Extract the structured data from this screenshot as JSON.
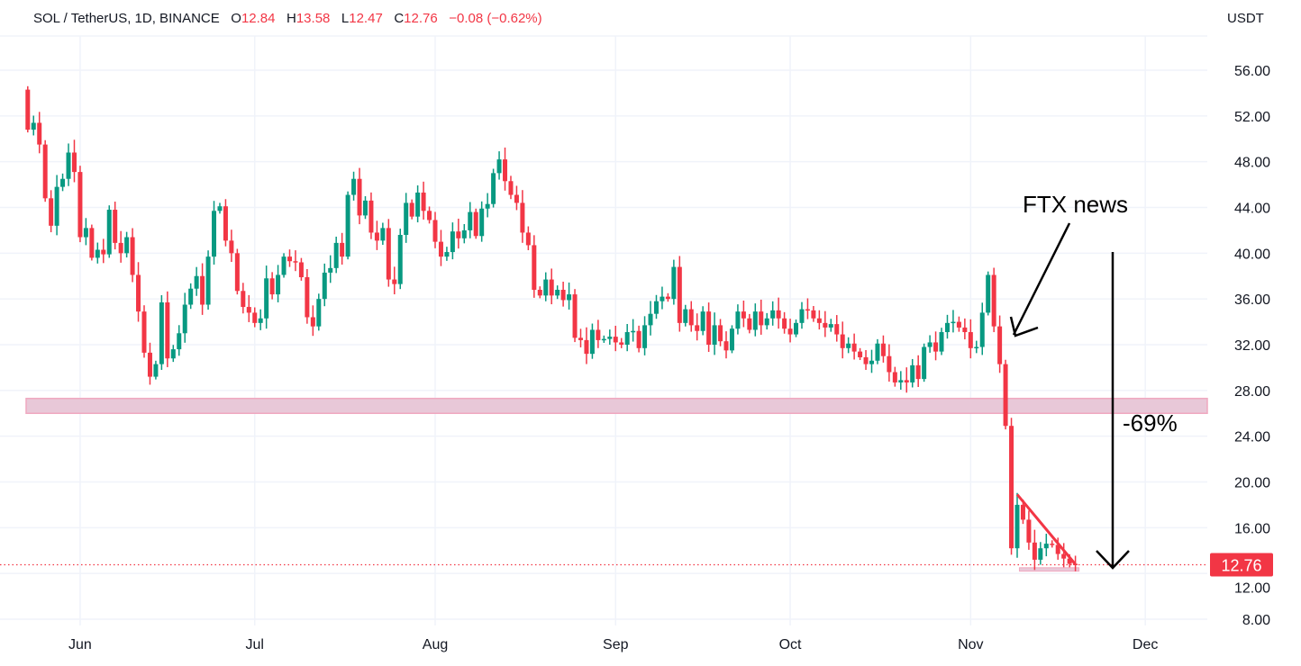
{
  "header": {
    "symbol": "SOL / TetherUS, 1D, BINANCE",
    "open_label": "O",
    "open": "12.84",
    "high_label": "H",
    "high": "13.58",
    "low_label": "L",
    "low": "12.47",
    "close_label": "C",
    "close": "12.76",
    "change": "−0.08 (−0.62%)",
    "currency": "USDT"
  },
  "colors": {
    "up": "#089981",
    "down": "#f23645",
    "zone": "#e8c8d8",
    "zone_border": "#f0a8c0",
    "annotation": "#000000"
  },
  "annotations": {
    "ftx_label": "FTX news",
    "drop_label": "-69%"
  },
  "chart_data": {
    "type": "candlestick",
    "title": "SOL / TetherUS, 1D, BINANCE",
    "ylabel": "USDT",
    "ylim": [
      8,
      56
    ],
    "y_ticks": [
      "56.00",
      "52.00",
      "48.00",
      "44.00",
      "40.00",
      "36.00",
      "32.00",
      "28.00",
      "24.00",
      "20.00",
      "16.00",
      "12.00",
      "8.00"
    ],
    "x_ticks": [
      "Jun",
      "Jul",
      "Aug",
      "Sep",
      "Oct",
      "Nov",
      "Dec"
    ],
    "grid": true,
    "last_price": "12.76",
    "first_open": 54.3,
    "close": [
      50.8,
      51.4,
      49.5,
      44.8,
      42.4,
      45.8,
      46.5,
      48.8,
      47.1,
      41.4,
      42.2,
      39.6,
      40.3,
      39.9,
      43.8,
      40.9,
      40.0,
      41.4,
      38.1,
      34.9,
      31.3,
      29.2,
      30.3,
      35.7,
      30.8,
      31.6,
      33.0,
      35.5,
      36.9,
      38.0,
      35.5,
      39.7,
      43.7,
      44.1,
      41.1,
      40.0,
      36.7,
      35.3,
      34.8,
      33.9,
      34.3,
      37.8,
      36.4,
      38.1,
      39.7,
      39.3,
      39.2,
      37.9,
      34.4,
      33.6,
      36.0,
      38.3,
      38.7,
      40.9,
      39.7,
      45.1,
      46.5,
      43.3,
      44.6,
      41.8,
      41.1,
      42.2,
      37.7,
      37.3,
      41.6,
      44.4,
      43.2,
      45.3,
      43.7,
      42.9,
      41.0,
      39.7,
      40.1,
      41.9,
      41.3,
      42.0,
      43.6,
      41.5,
      43.9,
      44.3,
      47.0,
      48.2,
      46.3,
      45.1,
      44.4,
      41.8,
      40.7,
      36.8,
      36.3,
      37.7,
      36.3,
      36.8,
      35.9,
      36.4,
      32.6,
      32.4,
      31.2,
      33.3,
      32.4,
      32.5,
      32.7,
      32.2,
      32.0,
      33.1,
      33.2,
      31.7,
      33.7,
      34.7,
      35.8,
      36.2,
      36.0,
      38.8,
      33.9,
      35.1,
      33.7,
      33.2,
      34.9,
      32.0,
      33.7,
      32.3,
      31.5,
      33.4,
      34.9,
      34.3,
      33.3,
      34.9,
      33.7,
      34.3,
      35.0,
      34.3,
      33.4,
      32.9,
      33.9,
      35.1,
      35.0,
      34.3,
      33.9,
      33.5,
      33.8,
      32.9,
      31.7,
      32.1,
      31.4,
      30.9,
      30.3,
      30.6,
      32.1,
      31.0,
      29.6,
      28.7,
      28.9,
      28.7,
      30.2,
      29.0,
      31.8,
      32.2,
      31.4,
      33.1,
      33.9,
      34.0,
      33.5,
      33.1,
      31.7,
      31.8,
      34.8,
      38.1,
      33.6,
      30.3,
      24.9,
      14.2,
      18.0,
      16.7,
      14.7,
      13.2,
      14.2,
      14.6,
      14.5,
      13.7,
      13.3,
      12.84,
      12.76
    ],
    "support_zone": [
      26.0,
      27.3
    ],
    "lower_zone": [
      12.2,
      12.5
    ],
    "trendline": {
      "from": 18.9,
      "to": 12.8
    }
  }
}
